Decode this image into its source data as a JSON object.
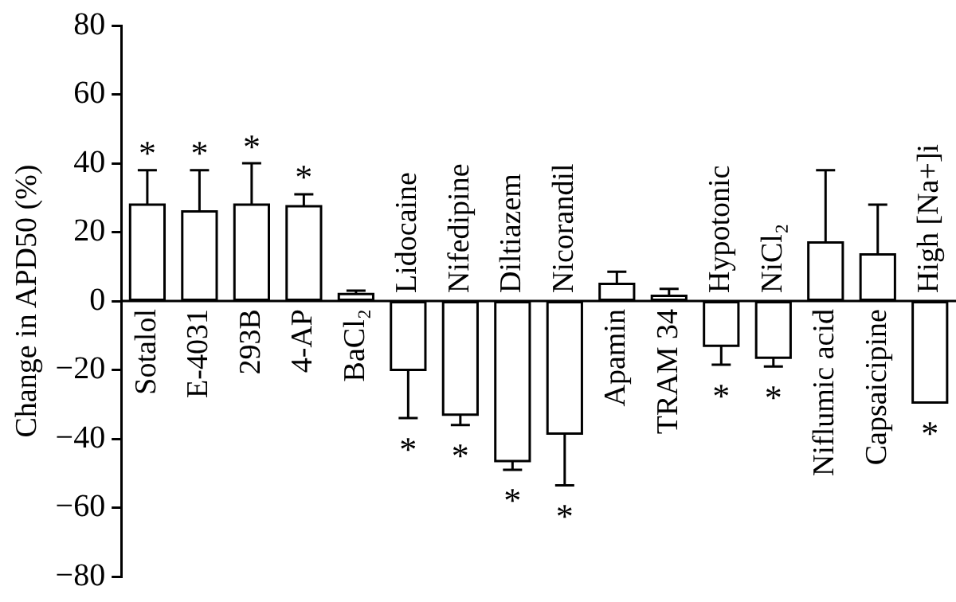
{
  "chart_data": {
    "type": "bar",
    "ylabel": "Change in APD50 (%)",
    "categories": [
      "Sotalol",
      "E-4031",
      "293B",
      "4-AP",
      "BaCl₂",
      "Lidocaine",
      "Nifedipine",
      "Diltiazem",
      "Nicorandil",
      "Apamin",
      "TRAM 34",
      "Hypotonic",
      "NiCl₂",
      "Niflumic acid",
      "Capsaicipine",
      "High [Na+]i"
    ],
    "values": [
      28,
      26,
      28,
      27.5,
      2,
      -20,
      -33,
      -46.5,
      -38.5,
      5,
      1.5,
      -13,
      -16.5,
      17,
      13.5,
      -29.5
    ],
    "errors": [
      [
        28,
        38
      ],
      [
        26,
        38
      ],
      [
        28,
        40
      ],
      [
        27.5,
        31
      ],
      [
        2,
        3
      ],
      [
        -34,
        -20
      ],
      [
        -36,
        -33
      ],
      [
        -49,
        -46.5
      ],
      [
        -53.5,
        -38.5
      ],
      [
        5,
        8.5
      ],
      [
        1.5,
        3.5
      ],
      [
        -18.5,
        -13
      ],
      [
        -19,
        -16.5
      ],
      [
        17,
        38
      ],
      [
        13.5,
        28
      ],
      null
    ],
    "value_labels": [
      "*",
      "*",
      "*",
      "*",
      null,
      "*",
      "*",
      "*",
      "*",
      null,
      null,
      "*",
      "*",
      null,
      null,
      "*"
    ],
    "color": "#ffffff",
    "ylim": [
      -80,
      80
    ],
    "yticks": [
      {
        "value": -80,
        "label": "−80"
      },
      {
        "value": -60,
        "label": "−60"
      },
      {
        "value": -40,
        "label": "−40"
      },
      {
        "value": -20,
        "label": "−20"
      },
      0,
      20,
      40,
      60,
      80
    ],
    "grid": false,
    "legend": false
  }
}
